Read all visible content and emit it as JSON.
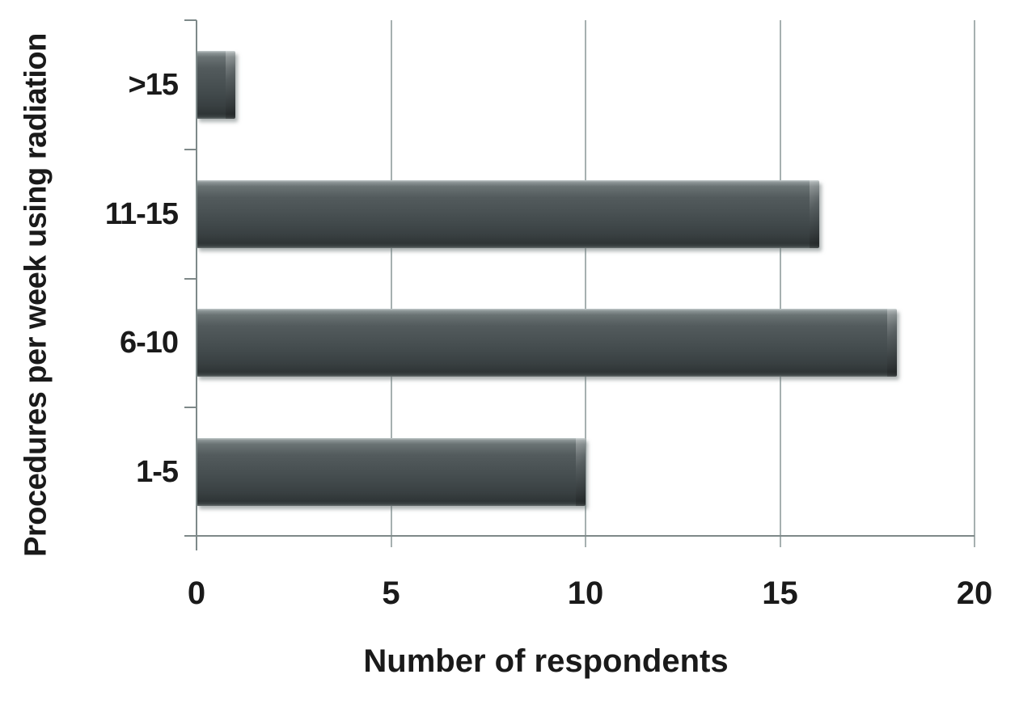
{
  "chart_data": {
    "type": "bar",
    "orientation": "horizontal",
    "title": "",
    "xlabel": "Number of respondents",
    "ylabel": "Procedures per week using radiation",
    "categories": [
      ">15",
      "11-15",
      "6-10",
      "1-5"
    ],
    "values": [
      1,
      16,
      18,
      10
    ],
    "xlim": [
      0,
      20
    ],
    "xticks": [
      "0",
      "5",
      "10",
      "15",
      "20"
    ],
    "xtick_values": [
      0,
      5,
      10,
      15,
      20
    ],
    "grid": "vertical-gridlines-on",
    "legend": "none",
    "colors": {
      "bar": "#454d4f",
      "gridline": "#a6b0b0",
      "axis": "#7e8989",
      "text": "#1a1a1a",
      "background": "#ffffff"
    }
  }
}
